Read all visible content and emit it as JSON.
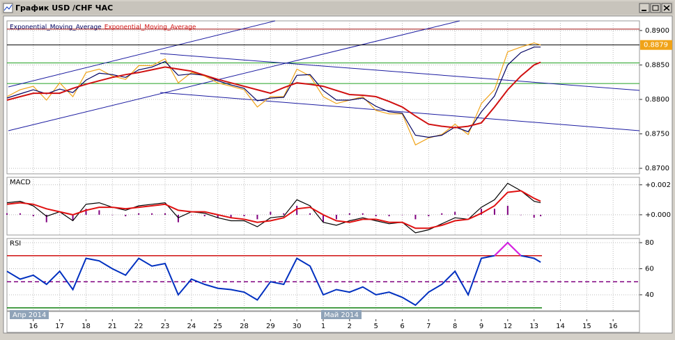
{
  "chart_data": [
    {
      "type": "line",
      "title": "График USD /CHF ЧАС",
      "categories": [
        "16",
        "17",
        "18",
        "21",
        "22",
        "23",
        "24",
        "25",
        "28",
        "29",
        "30",
        "1",
        "2",
        "5",
        "6",
        "7",
        "8",
        "9",
        "12",
        "13",
        "14",
        "15",
        "16"
      ],
      "month_labels": [
        "Апр 2014",
        "Май 2014"
      ],
      "x": [
        -1,
        -0.5,
        0,
        0.5,
        1,
        1.5,
        2,
        2.5,
        3,
        3.5,
        4,
        4.5,
        5,
        5.5,
        6,
        6.5,
        7,
        7.5,
        8,
        8.5,
        9,
        9.5,
        10,
        10.5,
        11,
        11.5,
        12,
        12.5,
        13,
        13.5,
        14,
        14.5,
        15,
        15.5,
        16,
        16.5,
        17,
        17.5,
        18,
        18.5,
        19,
        19.25
      ],
      "xlim": [
        -1,
        23
      ],
      "ylim": [
        0.8692,
        0.8914
      ],
      "yticks": [
        {
          "value": 0.89,
          "label": "0.8900"
        },
        {
          "value": 0.885,
          "label": "0.8850"
        },
        {
          "value": 0.88,
          "label": "0.8800"
        },
        {
          "value": 0.875,
          "label": "0.8750"
        },
        {
          "value": 0.87,
          "label": "0.8700"
        }
      ],
      "grid": true,
      "series": [
        {
          "color": "#f0a318",
          "values": [
            0.8804,
            0.8814,
            0.8819,
            0.8799,
            0.8824,
            0.8804,
            0.8839,
            0.8844,
            0.8834,
            0.8829,
            0.8849,
            0.8849,
            0.8859,
            0.8824,
            0.8839,
            0.8834,
            0.8824,
            0.8819,
            0.8814,
            0.8789,
            0.8804,
            0.8804,
            0.8844,
            0.8834,
            0.8804,
            0.8794,
            0.8799,
            0.8804,
            0.8784,
            0.8779,
            0.8779,
            0.8734,
            0.8744,
            0.8749,
            0.8764,
            0.8749,
            0.8794,
            0.8814,
            0.8869,
            0.8876,
            0.8882,
            0.8879
          ]
        },
        {
          "name": "Exponential_Moving_Average",
          "color": "#000060",
          "values": [
            0.8802,
            0.8808,
            0.8814,
            0.8808,
            0.8815,
            0.881,
            0.8828,
            0.8838,
            0.8836,
            0.8832,
            0.8843,
            0.8847,
            0.8855,
            0.8835,
            0.8837,
            0.8835,
            0.8827,
            0.8821,
            0.8816,
            0.8798,
            0.8802,
            0.8803,
            0.8835,
            0.8836,
            0.8813,
            0.8799,
            0.8799,
            0.8802,
            0.879,
            0.8782,
            0.878,
            0.8748,
            0.8745,
            0.8748,
            0.876,
            0.8753,
            0.8782,
            0.8805,
            0.885,
            0.8868,
            0.8876,
            0.8876
          ]
        },
        {
          "name": "Exponential_Moving_Average",
          "color": "#d01010",
          "values": [
            0.8799,
            0.8804,
            0.8809,
            0.8809,
            0.8809,
            0.8816,
            0.8822,
            0.8827,
            0.8832,
            0.8836,
            0.8839,
            0.8843,
            0.8847,
            0.8844,
            0.8841,
            0.8835,
            0.8829,
            0.8824,
            0.8819,
            0.8814,
            0.8809,
            0.8817,
            0.8824,
            0.8822,
            0.8819,
            0.8813,
            0.8807,
            0.8806,
            0.8804,
            0.8797,
            0.8789,
            0.8776,
            0.8764,
            0.8761,
            0.8759,
            0.8761,
            0.8766,
            0.8789,
            0.8814,
            0.8834,
            0.885,
            0.8854
          ]
        }
      ],
      "hlines": [
        {
          "value": 0.8902,
          "color": "#a01010"
        },
        {
          "value": 0.8853,
          "color": "#20a020"
        },
        {
          "value": 0.8823,
          "color": "#20a020"
        }
      ],
      "last_price": {
        "value": 0.8879,
        "label": "0.8879"
      }
    },
    {
      "type": "line",
      "title": "MACD",
      "x": [
        -1,
        -0.5,
        0,
        0.5,
        1,
        1.5,
        2,
        2.5,
        3,
        3.5,
        4,
        4.5,
        5,
        5.5,
        6,
        6.5,
        7,
        7.5,
        8,
        8.5,
        9,
        9.5,
        10,
        10.5,
        11,
        11.5,
        12,
        12.5,
        13,
        13.5,
        14,
        14.5,
        15,
        15.5,
        16,
        16.5,
        17,
        17.5,
        18,
        18.5,
        19,
        19.25
      ],
      "xlim": [
        -1,
        23
      ],
      "ylim": [
        -0.00135,
        0.0025
      ],
      "yticks": [
        {
          "value": 0.002,
          "label": "+0.002"
        },
        {
          "value": 0,
          "label": "+0.000"
        }
      ],
      "grid": true,
      "series": [
        {
          "kind": "bar",
          "color": "#800080",
          "values": [
            0.0001,
            0.0001,
            -0.0001,
            -0.0005,
            0,
            -0.0004,
            0.0004,
            0.0003,
            0,
            -0.0001,
            0.0001,
            0.0001,
            0.0001,
            -0.0005,
            0,
            -0.0001,
            -0.0002,
            -0.0002,
            -0.0001,
            -0.0003,
            0.0002,
            0.0001,
            0.0006,
            0.0001,
            -0.0005,
            -0.0003,
            0.0001,
            0.0001,
            -0.0001,
            -0.0001,
            0,
            -0.0003,
            -0.0001,
            0.0001,
            0.0002,
            0,
            0.0004,
            0.0004,
            0.0006,
            0,
            -0.0002,
            -0.0001
          ]
        },
        {
          "color": "#000000",
          "values": [
            0.0008,
            0.0009,
            0.0006,
            -0.0001,
            0.0002,
            -0.0004,
            0.0007,
            0.0008,
            0.0005,
            0.0003,
            0.0006,
            0.0007,
            0.0008,
            -0.0002,
            0.0002,
            0.0001,
            -0.0002,
            -0.0004,
            -0.0004,
            -0.0008,
            -0.0002,
            -0.0001,
            0.001,
            0.0006,
            -0.0005,
            -0.0007,
            -0.0004,
            -0.0002,
            -0.0004,
            -0.0006,
            -0.0005,
            -0.0012,
            -0.001,
            -0.0006,
            -0.0002,
            -0.0003,
            0.0005,
            0.001,
            0.0021,
            0.0016,
            0.0009,
            0.0008
          ]
        },
        {
          "color": "#e01010",
          "values": [
            0.0007,
            0.0008,
            0.0007,
            0.0004,
            0.0002,
            0,
            0.0003,
            0.0005,
            0.0005,
            0.0004,
            0.0005,
            0.0006,
            0.0007,
            0.0003,
            0.0002,
            0.0002,
            0,
            -0.0002,
            -0.0003,
            -0.0005,
            -0.0004,
            -0.0002,
            0.0004,
            0.0005,
            0,
            -0.0004,
            -0.0005,
            -0.0003,
            -0.0003,
            -0.0005,
            -0.0005,
            -0.0009,
            -0.0009,
            -0.0007,
            -0.0004,
            -0.0003,
            0.0001,
            0.0006,
            0.0015,
            0.0016,
            0.0011,
            0.0009
          ]
        }
      ]
    },
    {
      "type": "line",
      "title": "RSI",
      "x": [
        -1,
        -0.5,
        0,
        0.5,
        1,
        1.5,
        2,
        2.5,
        3,
        3.5,
        4,
        4.5,
        5,
        5.5,
        6,
        6.5,
        7,
        7.5,
        8,
        8.5,
        9,
        9.5,
        10,
        10.5,
        11,
        11.5,
        12,
        12.5,
        13,
        13.5,
        14,
        14.5,
        15,
        15.5,
        16,
        16.5,
        17,
        17.5,
        18,
        18.5,
        19,
        19.25
      ],
      "xlim": [
        -1,
        23
      ],
      "ylim": [
        27.7,
        83.2
      ],
      "yticks": [
        80,
        60,
        40
      ],
      "grid": true,
      "series": [
        {
          "color": "#0030c0",
          "highlight_color": "#e020e0",
          "values": [
            58,
            52,
            55,
            48,
            58,
            44,
            68,
            66,
            60,
            55,
            68,
            62,
            64,
            40,
            52,
            48,
            45,
            44,
            42,
            36,
            50,
            48,
            68,
            62,
            40,
            44,
            42,
            46,
            40,
            42,
            38,
            32,
            42,
            48,
            58,
            40,
            68,
            70,
            80,
            70,
            68,
            65
          ]
        }
      ],
      "hlines": [
        {
          "value": 70,
          "color": "#d01010"
        },
        {
          "value": 50,
          "color": "#800080",
          "dashed": true
        },
        {
          "value": 30,
          "color": "#108010"
        }
      ]
    }
  ]
}
